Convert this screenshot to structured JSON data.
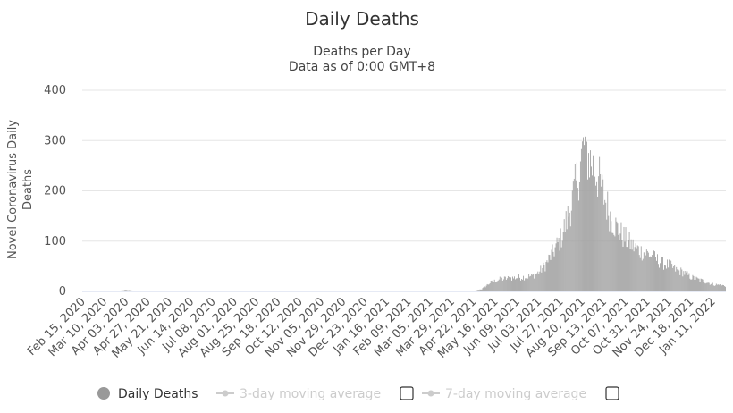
{
  "chart_data": {
    "type": "bar",
    "title": "Daily Deaths",
    "subtitle_lines": [
      "Deaths per Day",
      "Data as of 0:00 GMT+8"
    ],
    "xlabel": "",
    "ylabel_lines": [
      "Novel Coronavirus Daily",
      "Deaths"
    ],
    "ylim": [
      0,
      400
    ],
    "yticks": [
      0,
      100,
      200,
      300,
      400
    ],
    "grid": true,
    "x_tick_labels": [
      "Feb 15, 2020",
      "Mar 10, 2020",
      "Apr 03, 2020",
      "Apr 27, 2020",
      "May 21, 2020",
      "Jun 14, 2020",
      "Jul 08, 2020",
      "Aug 01, 2020",
      "Aug 25, 2020",
      "Sep 18, 2020",
      "Oct 12, 2020",
      "Nov 05, 2020",
      "Nov 29, 2020",
      "Dec 23, 2020",
      "Jan 16, 2021",
      "Feb 09, 2021",
      "Mar 05, 2021",
      "Mar 29, 2021",
      "Apr 22, 2021",
      "May 16, 2021",
      "Jun 09, 2021",
      "Jul 03, 2021",
      "Jul 27, 2021",
      "Aug 20, 2021",
      "Sep 13, 2021",
      "Oct 07, 2021",
      "Oct 31, 2021",
      "Nov 24, 2021",
      "Dec 18, 2021",
      "Jan 11, 2022"
    ],
    "x_start_date": "2020-02-15",
    "x_end_date": "2022-01-25",
    "bar_color": "#a0a0a0",
    "series": [
      {
        "name": "Daily Deaths",
        "points": [
          [
            "2020-02-15",
            0
          ],
          [
            "2020-03-24",
            1
          ],
          [
            "2020-04-03",
            3
          ],
          [
            "2020-04-15",
            1
          ],
          [
            "2020-06-01",
            0
          ],
          [
            "2021-01-01",
            0
          ],
          [
            "2021-04-10",
            0
          ],
          [
            "2021-04-22",
            1
          ],
          [
            "2021-05-01",
            5
          ],
          [
            "2021-05-10",
            18
          ],
          [
            "2021-05-20",
            25
          ],
          [
            "2021-06-01",
            28
          ],
          [
            "2021-06-15",
            30
          ],
          [
            "2021-06-25",
            32
          ],
          [
            "2021-07-03",
            40
          ],
          [
            "2021-07-10",
            55
          ],
          [
            "2021-07-18",
            80
          ],
          [
            "2021-07-27",
            110
          ],
          [
            "2021-08-03",
            150
          ],
          [
            "2021-08-10",
            200
          ],
          [
            "2021-08-15",
            240
          ],
          [
            "2021-08-20",
            290
          ],
          [
            "2021-08-22",
            310
          ],
          [
            "2021-08-25",
            290
          ],
          [
            "2021-08-30",
            270
          ],
          [
            "2021-09-05",
            250
          ],
          [
            "2021-09-13",
            200
          ],
          [
            "2021-09-20",
            160
          ],
          [
            "2021-09-28",
            130
          ],
          [
            "2021-10-07",
            110
          ],
          [
            "2021-10-15",
            95
          ],
          [
            "2021-10-23",
            85
          ],
          [
            "2021-10-31",
            80
          ],
          [
            "2021-11-08",
            70
          ],
          [
            "2021-11-16",
            60
          ],
          [
            "2021-11-24",
            55
          ],
          [
            "2021-12-02",
            45
          ],
          [
            "2021-12-10",
            40
          ],
          [
            "2021-12-18",
            30
          ],
          [
            "2021-12-26",
            25
          ],
          [
            "2022-01-04",
            20
          ],
          [
            "2022-01-11",
            15
          ],
          [
            "2022-01-25",
            12
          ]
        ]
      }
    ],
    "legend_position": "bottom",
    "legend": [
      {
        "name": "Daily Deaths",
        "active": true,
        "marker_color": "#999999"
      },
      {
        "name": "3-day moving average",
        "active": false,
        "marker_color": "#cccccc"
      },
      {
        "name": "7-day moving average",
        "active": false,
        "marker_color": "#cccccc"
      }
    ]
  }
}
